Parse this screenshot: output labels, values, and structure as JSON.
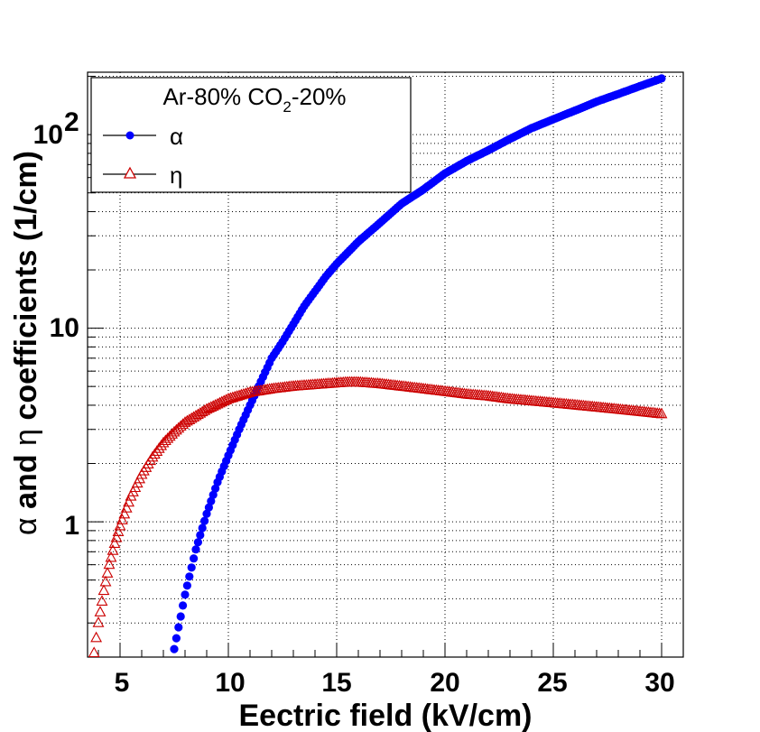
{
  "chart_data": {
    "type": "scatter",
    "xlabel": "Eectric field (kV/cm)",
    "ylabel_parts": [
      "α",
      " and ",
      "η",
      " coefficients (1/cm)"
    ],
    "x_axis": {
      "scale": "linear",
      "min": 3.5,
      "max": 31,
      "ticks": [
        5,
        10,
        15,
        20,
        25,
        30
      ],
      "tick_labels": [
        "5",
        "10",
        "15",
        "20",
        "25",
        "30"
      ]
    },
    "y_axis": {
      "scale": "log",
      "min": 0.2,
      "max": 210,
      "ticks": [
        1,
        10,
        100
      ],
      "tick_labels": [
        "1",
        "10",
        "10",
        "2"
      ]
    },
    "grid": true,
    "legend": {
      "position": "top-left",
      "title_main": "Ar-80% CO",
      "title_sub": "2",
      "title_rest": "-20%",
      "entries": [
        {
          "label": "α",
          "marker": "filled-circle",
          "color": "#0000ff"
        },
        {
          "label": "η",
          "marker": "open-triangle",
          "color": "#cc0000"
        }
      ]
    },
    "series": [
      {
        "name": "α",
        "color": "#0000ff",
        "marker": "filled-circle",
        "points": [
          [
            7.5,
            0.22
          ],
          [
            8,
            0.42
          ],
          [
            8.5,
            0.72
          ],
          [
            9,
            1.1
          ],
          [
            9.5,
            1.6
          ],
          [
            10,
            2.2
          ],
          [
            10.5,
            3.0
          ],
          [
            11,
            4.0
          ],
          [
            11.5,
            5.3
          ],
          [
            12,
            7.0
          ],
          [
            12.5,
            8.5
          ],
          [
            13,
            10.5
          ],
          [
            13.5,
            13.0
          ],
          [
            14,
            15.5
          ],
          [
            14.5,
            18.5
          ],
          [
            15,
            21.5
          ],
          [
            16,
            28
          ],
          [
            17,
            35
          ],
          [
            18,
            44
          ],
          [
            19,
            52
          ],
          [
            20,
            63
          ],
          [
            21,
            73
          ],
          [
            22,
            83
          ],
          [
            23,
            95
          ],
          [
            24,
            108
          ],
          [
            25,
            120
          ],
          [
            26,
            133
          ],
          [
            27,
            148
          ],
          [
            28,
            162
          ],
          [
            29,
            178
          ],
          [
            30,
            195
          ]
        ]
      },
      {
        "name": "η",
        "color": "#cc0000",
        "marker": "open-triangle",
        "points": [
          [
            3.8,
            0.21
          ],
          [
            4,
            0.3
          ],
          [
            4.25,
            0.44
          ],
          [
            4.5,
            0.6
          ],
          [
            4.75,
            0.77
          ],
          [
            5,
            0.95
          ],
          [
            5.5,
            1.35
          ],
          [
            6,
            1.75
          ],
          [
            6.5,
            2.15
          ],
          [
            7,
            2.55
          ],
          [
            7.5,
            2.9
          ],
          [
            8,
            3.25
          ],
          [
            9,
            3.8
          ],
          [
            10,
            4.3
          ],
          [
            11,
            4.65
          ],
          [
            12,
            4.85
          ],
          [
            13,
            5.0
          ],
          [
            14,
            5.1
          ],
          [
            15,
            5.2
          ],
          [
            15.5,
            5.25
          ],
          [
            16,
            5.25
          ],
          [
            17,
            5.15
          ],
          [
            18,
            5.0
          ],
          [
            19,
            4.85
          ],
          [
            20,
            4.7
          ],
          [
            21,
            4.55
          ],
          [
            22,
            4.45
          ],
          [
            23,
            4.3
          ],
          [
            24,
            4.2
          ],
          [
            25,
            4.1
          ],
          [
            26,
            4.0
          ],
          [
            27,
            3.9
          ],
          [
            28,
            3.8
          ],
          [
            29,
            3.7
          ],
          [
            30,
            3.6
          ]
        ]
      }
    ]
  }
}
